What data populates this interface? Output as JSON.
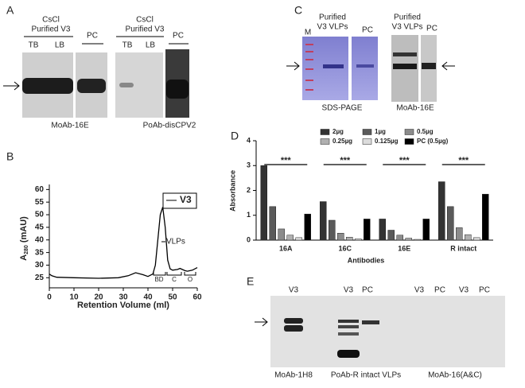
{
  "panels": {
    "A": {
      "letter": "A",
      "left_header": [
        "CsCl",
        "Purified  V3"
      ],
      "left_lanes": [
        "TB",
        "LB"
      ],
      "left_pc": "PC",
      "left_caption": "MoAb-16E",
      "right_header": [
        "CsCl",
        "Purified  V3"
      ],
      "right_lanes": [
        "TB",
        "LB"
      ],
      "right_pc": "PC",
      "right_caption": "PoAb-disCPV2"
    },
    "C": {
      "letter": "C",
      "gel_marker": "M",
      "gel_header": [
        "Purified",
        "V3 VLPs"
      ],
      "gel_pc": "PC",
      "gel_caption": "SDS-PAGE",
      "blot_header": [
        "Purified",
        "V3 VLPs"
      ],
      "blot_pc": "PC",
      "blot_caption": "MoAb-16E"
    },
    "E": {
      "letter": "E",
      "lanes": [
        "V3",
        "V3",
        "PC",
        "V3",
        "PC",
        "V3",
        "PC"
      ],
      "captions": [
        "MoAb-1H8",
        "PoAb-R intact VLPs",
        "MoAb-16(A&C)"
      ]
    }
  },
  "chart_data": [
    {
      "type": "line",
      "letter": "B",
      "xlabel": "Retention Volume (ml)",
      "ylabel": [
        "A",
        "280",
        " (mAU)"
      ],
      "x": [
        0,
        1,
        3,
        10,
        20,
        28,
        32,
        35,
        38,
        40,
        42,
        43,
        44,
        45,
        46,
        47,
        48,
        49,
        50,
        52,
        53,
        55,
        56,
        58,
        60
      ],
      "series": [
        {
          "name": "V3",
          "color": "#000000",
          "values": [
            26.5,
            25.8,
            25.2,
            25,
            24.8,
            25,
            25.8,
            27,
            26.2,
            25.5,
            26.5,
            30,
            40,
            50,
            53,
            45,
            32,
            28.5,
            28,
            28.3,
            28.7,
            27.8,
            27.6,
            28,
            29
          ]
        }
      ],
      "xlim": [
        0,
        60
      ],
      "xticks": [
        0,
        10,
        20,
        30,
        40,
        50,
        60
      ],
      "ylim": [
        21,
        62
      ],
      "yticks": [
        25,
        30,
        35,
        40,
        45,
        50,
        55,
        60
      ],
      "annotations": [
        "VLPs",
        "BD",
        "C",
        "O"
      ],
      "legend": "top-right"
    },
    {
      "type": "bar",
      "letter": "D",
      "xlabel": "Antibodies",
      "ylabel": "Absorbance",
      "categories": [
        "16A",
        "16C",
        "16E",
        "R intact"
      ],
      "series": [
        {
          "name": "2µg",
          "color": "#333333",
          "values": [
            3.0,
            1.55,
            0.85,
            2.35
          ]
        },
        {
          "name": "1µg",
          "color": "#5a5a5a",
          "values": [
            1.35,
            0.8,
            0.4,
            1.35
          ]
        },
        {
          "name": "0.5µg",
          "color": "#8c8c8c",
          "values": [
            0.45,
            0.28,
            0.2,
            0.5
          ]
        },
        {
          "name": "0.25µg",
          "color": "#b0b0b0",
          "values": [
            0.2,
            0.12,
            0.08,
            0.22
          ]
        },
        {
          "name": "0.125µg",
          "color": "#dcdcdc",
          "values": [
            0.1,
            0.05,
            0.03,
            0.1
          ]
        },
        {
          "name": "PC (0.5µg)",
          "color": "#000000",
          "values": [
            1.05,
            0.85,
            0.85,
            1.85
          ]
        }
      ],
      "ylim": [
        0,
        4
      ],
      "yticks": [
        0,
        1,
        2,
        3,
        4
      ],
      "significance": [
        "***",
        "***",
        "***",
        "***"
      ],
      "legend": "top"
    }
  ]
}
